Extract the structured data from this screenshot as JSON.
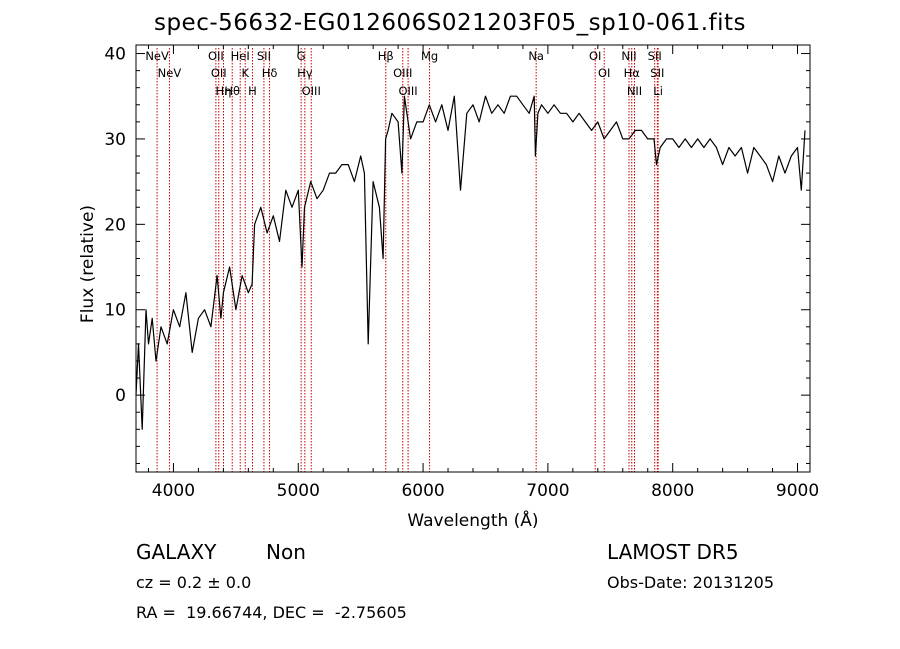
{
  "title": "spec-56632-EG012606S021203F05_sp10-061.fits",
  "info": {
    "object_class": "GALAXY",
    "subclass": "Non",
    "cz": "cz = 0.2 ± 0.0",
    "radec": "RA =  19.66744, DEC =  -2.75605",
    "survey": "LAMOST DR5",
    "obs_date": "Obs-Date: 20131205"
  },
  "chart_data": {
    "type": "line",
    "xlabel": "Wavelength (Å)",
    "ylabel": "Flux (relative)",
    "xlim": [
      3700,
      9100
    ],
    "ylim": [
      -9,
      41
    ],
    "xticks": [
      4000,
      5000,
      6000,
      7000,
      8000,
      9000
    ],
    "yticks": [
      0,
      10,
      20,
      30,
      40
    ],
    "grid": false,
    "line_color": "#000000",
    "marker_color": "#cc0000",
    "series": [
      {
        "x": [
          3700,
          3720,
          3750,
          3780,
          3800,
          3830,
          3860,
          3900,
          3950,
          4000,
          4050,
          4100,
          4150,
          4200,
          4250,
          4300,
          4350,
          4380,
          4400,
          4450,
          4500,
          4550,
          4600,
          4630,
          4650,
          4700,
          4750,
          4800,
          4850,
          4900,
          4950,
          5000,
          5030,
          5050,
          5100,
          5150,
          5200,
          5250,
          5300,
          5350,
          5400,
          5450,
          5500,
          5530,
          5560,
          5600,
          5650,
          5680,
          5700,
          5720,
          5750,
          5800,
          5830,
          5850,
          5880,
          5900,
          5950,
          6000,
          6050,
          6100,
          6150,
          6200,
          6250,
          6300,
          6350,
          6400,
          6450,
          6500,
          6550,
          6600,
          6650,
          6700,
          6750,
          6800,
          6850,
          6890,
          6900,
          6920,
          6950,
          7000,
          7050,
          7100,
          7150,
          7200,
          7250,
          7300,
          7350,
          7400,
          7450,
          7500,
          7550,
          7600,
          7650,
          7700,
          7750,
          7800,
          7850,
          7870,
          7900,
          7950,
          8000,
          8050,
          8100,
          8150,
          8200,
          8250,
          8300,
          8350,
          8400,
          8450,
          8500,
          8550,
          8600,
          8650,
          8700,
          8750,
          8800,
          8850,
          8900,
          8950,
          9000,
          9030,
          9060
        ],
        "y": [
          0,
          6,
          -4,
          10,
          6,
          9,
          4,
          8,
          6,
          10,
          8,
          12,
          5,
          9,
          10,
          8,
          14,
          9,
          12,
          15,
          10,
          14,
          12,
          13,
          20,
          22,
          19,
          21,
          18,
          24,
          22,
          24,
          15,
          22,
          25,
          23,
          24,
          26,
          26,
          27,
          27,
          25,
          28,
          26,
          6,
          25,
          22,
          16,
          30,
          31,
          33,
          32,
          26,
          35,
          32,
          30,
          32,
          32,
          34,
          32,
          34,
          31,
          35,
          24,
          33,
          34,
          32,
          35,
          33,
          34,
          33,
          35,
          35,
          34,
          33,
          35,
          28,
          33,
          34,
          33,
          34,
          33,
          33,
          32,
          33,
          32,
          31,
          32,
          30,
          31,
          32,
          30,
          30,
          31,
          31,
          30,
          30,
          27,
          29,
          30,
          30,
          29,
          30,
          29,
          30,
          29,
          30,
          29,
          27,
          29,
          28,
          29,
          26,
          29,
          28,
          27,
          25,
          28,
          26,
          28,
          29,
          24,
          31
        ]
      }
    ],
    "emission_lines": [
      {
        "x": 3869,
        "label": "NeV"
      },
      {
        "x": 3968,
        "label": "NeV"
      },
      {
        "x": 4340,
        "label": "OII"
      },
      {
        "x": 4363,
        "label": "OII"
      },
      {
        "x": 4401,
        "label": "Hη"
      },
      {
        "x": 4471,
        "label": "Hθ"
      },
      {
        "x": 4535,
        "label": "HeI"
      },
      {
        "x": 4575,
        "label": "K"
      },
      {
        "x": 4633,
        "label": "H"
      },
      {
        "x": 4725,
        "label": "SII"
      },
      {
        "x": 4770,
        "label": "Hδ"
      },
      {
        "x": 5023,
        "label": "G"
      },
      {
        "x": 5053,
        "label": "Hγ"
      },
      {
        "x": 5104,
        "label": "OIII"
      },
      {
        "x": 5701,
        "label": "Hβ"
      },
      {
        "x": 5837,
        "label": "OIII"
      },
      {
        "x": 5880,
        "label": "OIII"
      },
      {
        "x": 6052,
        "label": "Mg"
      },
      {
        "x": 6906,
        "label": "Na"
      },
      {
        "x": 7379,
        "label": "OI"
      },
      {
        "x": 7451,
        "label": "OI"
      },
      {
        "x": 7650,
        "label": "NII"
      },
      {
        "x": 7672,
        "label": "Hα"
      },
      {
        "x": 7694,
        "label": "NII"
      },
      {
        "x": 7856,
        "label": "SII"
      },
      {
        "x": 7877,
        "label": "SII"
      },
      {
        "x": 7883,
        "label": "Li"
      }
    ]
  }
}
